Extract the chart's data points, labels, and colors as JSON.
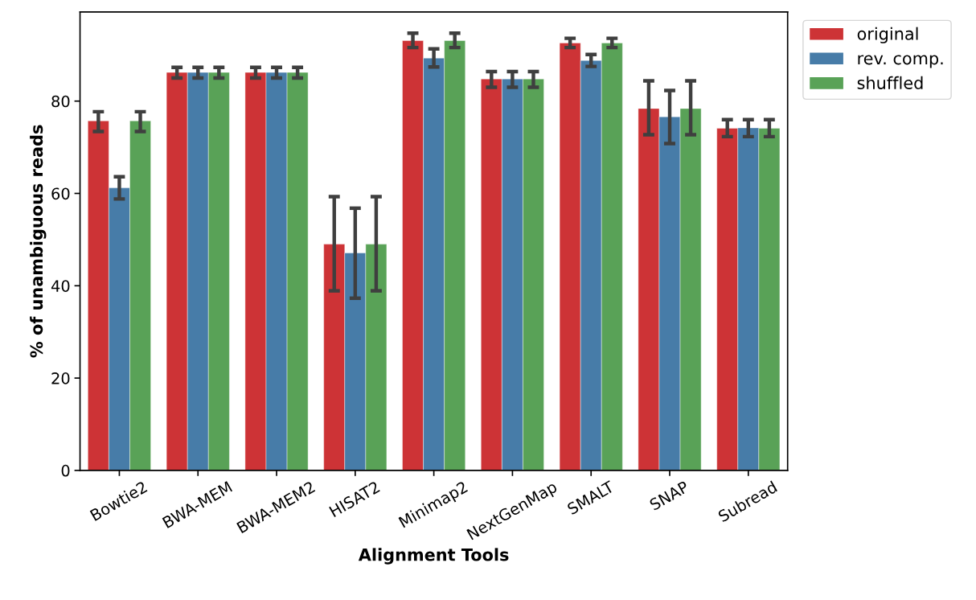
{
  "chart_data": {
    "type": "bar",
    "xlabel": "Alignment Tools",
    "ylabel": "% of unambiguous reads",
    "categories": [
      "Bowtie2",
      "BWA-MEM",
      "BWA-MEM2",
      "HISAT2",
      "Minimap2",
      "NextGenMap",
      "SMALT",
      "SNAP",
      "Subread"
    ],
    "series": [
      {
        "name": "original",
        "color": "#cd3336",
        "values": [
          75.7,
          86.2,
          86.2,
          49.0,
          93.1,
          84.8,
          92.6,
          78.4,
          74.1
        ],
        "errors": [
          [
            73.4,
            77.7
          ],
          [
            85.0,
            87.3
          ],
          [
            85.0,
            87.3
          ],
          [
            38.9,
            59.3
          ],
          [
            91.6,
            94.7
          ],
          [
            83.0,
            86.4
          ],
          [
            91.6,
            93.6
          ],
          [
            72.7,
            84.4
          ],
          [
            72.3,
            76.0
          ]
        ]
      },
      {
        "name": "rev. comp.",
        "color": "#477ca8",
        "values": [
          61.2,
          86.2,
          86.2,
          47.1,
          89.3,
          84.8,
          88.8,
          76.6,
          74.2
        ],
        "errors": [
          [
            58.8,
            63.6
          ],
          [
            85.0,
            87.3
          ],
          [
            85.0,
            87.3
          ],
          [
            37.3,
            56.8
          ],
          [
            87.4,
            91.3
          ],
          [
            83.0,
            86.4
          ],
          [
            87.5,
            90.1
          ],
          [
            70.8,
            82.3
          ],
          [
            72.3,
            76.0
          ]
        ]
      },
      {
        "name": "shuffled",
        "color": "#59a257",
        "values": [
          75.7,
          86.2,
          86.2,
          49.0,
          93.1,
          84.8,
          92.6,
          78.4,
          74.1
        ],
        "errors": [
          [
            73.4,
            77.7
          ],
          [
            85.0,
            87.3
          ],
          [
            85.0,
            87.3
          ],
          [
            38.9,
            59.3
          ],
          [
            91.6,
            94.7
          ],
          [
            83.0,
            86.4
          ],
          [
            91.6,
            93.6
          ],
          [
            72.7,
            84.4
          ],
          [
            72.3,
            76.0
          ]
        ]
      }
    ],
    "ylim": [
      0,
      99.3
    ],
    "yticks": [
      0,
      20,
      40,
      60,
      80
    ],
    "grid": false,
    "legend": "top right"
  }
}
